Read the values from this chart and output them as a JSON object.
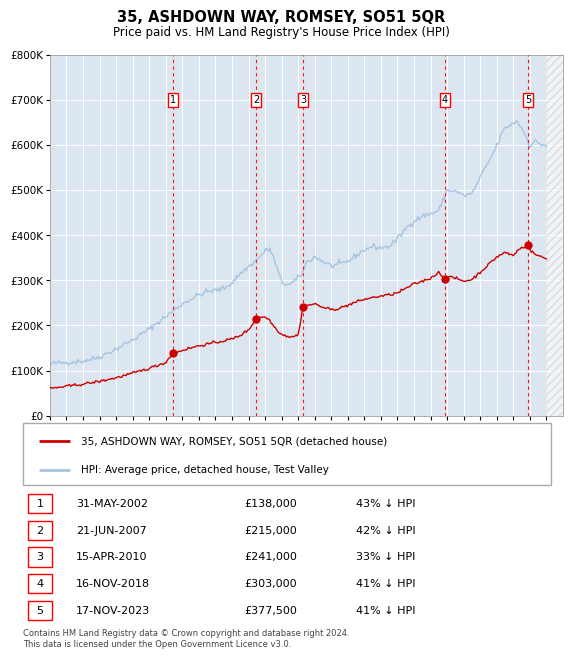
{
  "title": "35, ASHDOWN WAY, ROMSEY, SO51 5QR",
  "subtitle": "Price paid vs. HM Land Registry's House Price Index (HPI)",
  "background_color": "#dce6f1",
  "hpi_color": "#a8c4e0",
  "price_color": "#cc0000",
  "ylim": [
    0,
    800000
  ],
  "yticks": [
    0,
    100000,
    200000,
    300000,
    400000,
    500000,
    600000,
    700000,
    800000
  ],
  "xlim_start": 1995,
  "xlim_end": 2026,
  "transactions": [
    {
      "num": 1,
      "date": "31-MAY-2002",
      "year": 2002.42,
      "price": 138000,
      "label": "43% ↓ HPI"
    },
    {
      "num": 2,
      "date": "21-JUN-2007",
      "year": 2007.47,
      "price": 215000,
      "label": "42% ↓ HPI"
    },
    {
      "num": 3,
      "date": "15-APR-2010",
      "year": 2010.29,
      "price": 241000,
      "label": "33% ↓ HPI"
    },
    {
      "num": 4,
      "date": "16-NOV-2018",
      "year": 2018.88,
      "price": 303000,
      "label": "41% ↓ HPI"
    },
    {
      "num": 5,
      "date": "17-NOV-2023",
      "year": 2023.88,
      "price": 377500,
      "label": "41% ↓ HPI"
    }
  ],
  "legend_entries": [
    "35, ASHDOWN WAY, ROMSEY, SO51 5QR (detached house)",
    "HPI: Average price, detached house, Test Valley"
  ],
  "footer": "Contains HM Land Registry data © Crown copyright and database right 2024.\nThis data is licensed under the Open Government Licence v3.0.",
  "hpi_anchors": {
    "1995.0": 115000,
    "1996.0": 118000,
    "1997.0": 121000,
    "1998.0": 130000,
    "1999.0": 148000,
    "2000.0": 168000,
    "2001.0": 192000,
    "2002.0": 220000,
    "2003.0": 248000,
    "2004.0": 268000,
    "2004.5": 275000,
    "2005.0": 278000,
    "2005.5": 282000,
    "2006.0": 295000,
    "2006.5": 315000,
    "2007.0": 330000,
    "2007.5": 345000,
    "2008.0": 365000,
    "2008.3": 370000,
    "2008.7": 330000,
    "2009.0": 295000,
    "2009.5": 290000,
    "2010.0": 305000,
    "2010.3": 320000,
    "2010.5": 340000,
    "2011.0": 352000,
    "2011.5": 342000,
    "2012.0": 332000,
    "2012.5": 335000,
    "2013.0": 342000,
    "2013.5": 355000,
    "2014.0": 368000,
    "2014.5": 375000,
    "2015.0": 372000,
    "2015.5": 375000,
    "2016.0": 392000,
    "2016.5": 415000,
    "2017.0": 432000,
    "2017.5": 442000,
    "2018.0": 448000,
    "2018.5": 455000,
    "2019.0": 500000,
    "2019.5": 498000,
    "2020.0": 488000,
    "2020.5": 492000,
    "2021.0": 528000,
    "2021.5": 562000,
    "2022.0": 598000,
    "2022.3": 625000,
    "2022.5": 638000,
    "2023.0": 648000,
    "2023.2": 655000,
    "2023.5": 638000,
    "2023.8": 618000,
    "2024.0": 598000,
    "2024.3": 608000,
    "2024.7": 602000,
    "2025.0": 598000
  },
  "price_anchors": {
    "1995.0": 60000,
    "1996.0": 65000,
    "1997.0": 70000,
    "1998.0": 76000,
    "1999.0": 84000,
    "2000.0": 94000,
    "2001.0": 105000,
    "2002.0": 118000,
    "2002.42": 138000,
    "2003.0": 145000,
    "2004.0": 155000,
    "2005.0": 162000,
    "2006.0": 170000,
    "2006.5": 178000,
    "2007.0": 190000,
    "2007.47": 215000,
    "2007.8": 220000,
    "2008.2": 215000,
    "2008.6": 195000,
    "2009.0": 180000,
    "2009.5": 175000,
    "2010.0": 178000,
    "2010.29": 241000,
    "2010.5": 244000,
    "2011.0": 248000,
    "2011.5": 240000,
    "2012.0": 235000,
    "2012.5": 238000,
    "2013.0": 245000,
    "2013.5": 252000,
    "2014.0": 258000,
    "2014.5": 262000,
    "2015.0": 265000,
    "2015.5": 268000,
    "2016.0": 272000,
    "2016.5": 282000,
    "2017.0": 292000,
    "2017.5": 298000,
    "2018.0": 305000,
    "2018.5": 318000,
    "2018.88": 303000,
    "2019.0": 308000,
    "2019.5": 305000,
    "2020.0": 298000,
    "2020.5": 302000,
    "2021.0": 318000,
    "2021.5": 335000,
    "2022.0": 352000,
    "2022.5": 362000,
    "2023.0": 355000,
    "2023.3": 368000,
    "2023.5": 372000,
    "2023.88": 377500,
    "2024.0": 368000,
    "2024.3": 358000,
    "2024.7": 352000,
    "2025.0": 348000
  }
}
